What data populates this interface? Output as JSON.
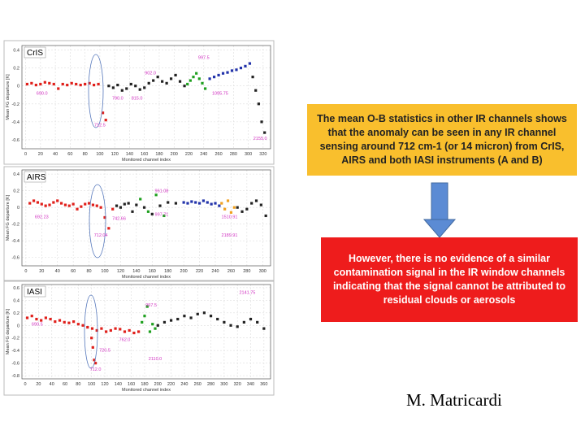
{
  "chart_data": [
    {
      "type": "scatter",
      "title": "CrIS",
      "xlabel": "Monitored channel index",
      "ylabel": "Mean FG departure [K]",
      "xlim": [
        -5,
        330
      ],
      "ylim": [
        -0.7,
        0.45
      ],
      "xticks": [
        0,
        20,
        40,
        60,
        80,
        100,
        120,
        140,
        160,
        180,
        200,
        220,
        240,
        260,
        280,
        300,
        320
      ],
      "yticks": [
        0.4,
        0.2,
        0,
        -0.2,
        -0.4,
        -0.6
      ],
      "series": [
        {
          "color": "#e0201b",
          "x": [
            2,
            8,
            14,
            20,
            26,
            32,
            38,
            44,
            50,
            56,
            62,
            68,
            74,
            80,
            86,
            92,
            98,
            104,
            108
          ],
          "values": [
            0.02,
            0.03,
            0.01,
            0.02,
            0.04,
            0.03,
            0.02,
            -0.03,
            0.02,
            0.01,
            0.03,
            0.02,
            0.01,
            0.02,
            0.03,
            0.01,
            0.02,
            -0.3,
            -0.38
          ]
        },
        {
          "color": "#222222",
          "x": [
            112,
            118,
            124,
            130,
            136,
            142,
            148,
            154,
            160,
            166,
            172,
            178,
            184,
            190,
            196,
            202,
            208,
            214
          ],
          "values": [
            0.0,
            -0.02,
            0.01,
            -0.05,
            -0.03,
            0.02,
            0.0,
            -0.04,
            -0.02,
            0.03,
            0.06,
            0.1,
            0.05,
            0.03,
            0.08,
            0.12,
            0.05,
            0.0
          ]
        },
        {
          "color": "#1fa01f",
          "x": [
            218,
            222,
            226,
            230,
            234,
            238,
            242
          ],
          "values": [
            0.02,
            0.06,
            0.1,
            0.14,
            0.08,
            0.03,
            -0.03
          ]
        },
        {
          "color": "#2233aa",
          "x": [
            248,
            254,
            260,
            266,
            272,
            278,
            284,
            290,
            296,
            302
          ],
          "values": [
            0.08,
            0.1,
            0.12,
            0.14,
            0.15,
            0.17,
            0.18,
            0.2,
            0.22,
            0.25
          ]
        },
        {
          "color": "#222222",
          "x": [
            306,
            310,
            314,
            318,
            322
          ],
          "values": [
            0.1,
            -0.05,
            -0.2,
            -0.4,
            -0.52
          ]
        }
      ],
      "annotations": [
        {
          "text": "997.5",
          "x": 240,
          "y": 0.3
        },
        {
          "text": "902.0",
          "x": 168,
          "y": 0.13
        },
        {
          "text": "690.0",
          "x": 22,
          "y": -0.1
        },
        {
          "text": "712.5",
          "x": 100,
          "y": -0.45
        },
        {
          "text": "790.0",
          "x": 124,
          "y": -0.15
        },
        {
          "text": "815.0",
          "x": 150,
          "y": -0.15
        },
        {
          "text": "1095.75",
          "x": 262,
          "y": -0.1
        },
        {
          "text": "2155.0",
          "x": 316,
          "y": -0.6
        }
      ]
    },
    {
      "type": "scatter",
      "title": "AIRS",
      "xlabel": "Monitored channel index",
      "ylabel": "Mean FG departure [K]",
      "xlim": [
        -5,
        310
      ],
      "ylim": [
        -0.7,
        0.45
      ],
      "xticks": [
        0,
        20,
        40,
        60,
        80,
        100,
        120,
        140,
        160,
        180,
        200,
        220,
        240,
        260,
        280,
        300
      ],
      "yticks": [
        0.4,
        0.2,
        0,
        -0.2,
        -0.4,
        -0.6
      ],
      "series": [
        {
          "color": "#e0201b",
          "x": [
            5,
            10,
            15,
            20,
            25,
            30,
            35,
            40,
            45,
            50,
            55,
            60,
            65,
            70,
            75,
            80,
            85,
            90,
            95,
            100,
            105,
            110
          ],
          "values": [
            0.05,
            0.08,
            0.06,
            0.04,
            0.02,
            0.03,
            0.06,
            0.08,
            0.05,
            0.03,
            0.02,
            0.04,
            -0.02,
            0.01,
            0.04,
            0.05,
            0.03,
            0.02,
            0.0,
            -0.12,
            -0.25,
            -0.02
          ]
        },
        {
          "color": "#222222",
          "x": [
            115,
            120,
            125,
            130,
            135,
            140,
            150,
            160,
            170,
            180,
            190
          ],
          "values": [
            0.02,
            0.0,
            0.04,
            0.05,
            -0.05,
            0.03,
            0.0,
            -0.08,
            0.02,
            0.06,
            0.05
          ]
        },
        {
          "color": "#1fa01f",
          "x": [
            145,
            155,
            165,
            175
          ],
          "values": [
            0.1,
            -0.05,
            0.15,
            -0.1
          ]
        },
        {
          "color": "#2233aa",
          "x": [
            200,
            205,
            210,
            215,
            220,
            225,
            230,
            235,
            240,
            245
          ],
          "values": [
            0.06,
            0.05,
            0.07,
            0.06,
            0.05,
            0.08,
            0.06,
            0.04,
            0.05,
            0.02
          ]
        },
        {
          "color": "#f0a020",
          "x": [
            248,
            252,
            256,
            260,
            264
          ],
          "values": [
            0.05,
            -0.02,
            0.08,
            -0.06,
            0.0
          ]
        },
        {
          "color": "#222222",
          "x": [
            268,
            274,
            280,
            286,
            292,
            298,
            304
          ],
          "values": [
            0.0,
            -0.05,
            -0.02,
            0.05,
            0.08,
            0.03,
            -0.1
          ]
        }
      ],
      "annotations": [
        {
          "text": "692.23",
          "x": 20,
          "y": -0.13
        },
        {
          "text": "712.04",
          "x": 95,
          "y": -0.35
        },
        {
          "text": "742.66",
          "x": 118,
          "y": -0.15
        },
        {
          "text": "961.08",
          "x": 172,
          "y": 0.18
        },
        {
          "text": "997.71",
          "x": 172,
          "y": -0.1
        },
        {
          "text": "1510.91",
          "x": 258,
          "y": -0.13
        },
        {
          "text": "2189.91",
          "x": 258,
          "y": -0.35
        }
      ]
    },
    {
      "type": "scatter",
      "title": "IASI",
      "xlabel": "Monitored channel index",
      "ylabel": "Mean FG departure [K]",
      "xlim": [
        -5,
        370
      ],
      "ylim": [
        -0.85,
        0.65
      ],
      "xticks": [
        0,
        20,
        40,
        60,
        80,
        100,
        120,
        140,
        160,
        180,
        200,
        220,
        240,
        260,
        280,
        300,
        320,
        340,
        360
      ],
      "yticks": [
        0.6,
        0.4,
        0.2,
        0,
        -0.2,
        -0.4,
        -0.6,
        -0.8
      ],
      "series": [
        {
          "color": "#e0201b",
          "x": [
            3,
            10,
            17,
            24,
            31,
            38,
            45,
            52,
            59,
            66,
            73,
            80,
            87,
            94,
            101,
            108,
            115,
            122,
            129,
            136,
            143,
            150,
            157,
            164,
            171
          ],
          "values": [
            0.12,
            0.15,
            0.1,
            0.08,
            0.12,
            0.1,
            0.06,
            0.08,
            0.05,
            0.04,
            0.06,
            0.02,
            0.0,
            -0.03,
            -0.05,
            -0.08,
            -0.05,
            -0.1,
            -0.08,
            -0.05,
            -0.06,
            -0.1,
            -0.08,
            -0.12,
            -0.1
          ]
        },
        {
          "color": "#e0201b",
          "x": [
            100,
            102,
            104,
            106
          ],
          "values": [
            -0.2,
            -0.35,
            -0.55,
            -0.6
          ]
        },
        {
          "color": "#1fa01f",
          "x": [
            176,
            180,
            184,
            188,
            192,
            196
          ],
          "values": [
            0.05,
            0.15,
            0.3,
            -0.1,
            0.02,
            -0.05
          ]
        },
        {
          "color": "#222222",
          "x": [
            200,
            210,
            220,
            230,
            240,
            250,
            260,
            270,
            280,
            290,
            300,
            310,
            320,
            330,
            340,
            350,
            360
          ],
          "values": [
            0.0,
            0.05,
            0.08,
            0.1,
            0.15,
            0.12,
            0.18,
            0.2,
            0.15,
            0.1,
            0.05,
            0.0,
            -0.02,
            0.05,
            0.1,
            0.05,
            -0.05
          ]
        }
      ],
      "annotations": [
        {
          "text": "690.5",
          "x": 18,
          "y": 0.0
        },
        {
          "text": "712.0",
          "x": 106,
          "y": -0.72
        },
        {
          "text": "720.5",
          "x": 120,
          "y": -0.42
        },
        {
          "text": "762.0",
          "x": 150,
          "y": -0.25
        },
        {
          "text": "997.5",
          "x": 190,
          "y": 0.3
        },
        {
          "text": "2110.0",
          "x": 196,
          "y": -0.55
        },
        {
          "text": "2141.75",
          "x": 335,
          "y": 0.5
        }
      ]
    }
  ],
  "slide": {
    "note_box": [
      "The mean O-B statistics in other IR channels shows",
      "that the anomaly can be seen in any IR channel",
      "sensing around 712 cm-1 (or 14 micron) from CrIS,",
      "AIRS and both IASI instruments (A and B)"
    ],
    "warning_box": [
      "However, there is no evidence of a similar",
      "contamination signal in the IR window channels",
      "indicating that the signal cannot be attributed to",
      "residual clouds or aerosols"
    ],
    "author": "M. Matricardi"
  }
}
